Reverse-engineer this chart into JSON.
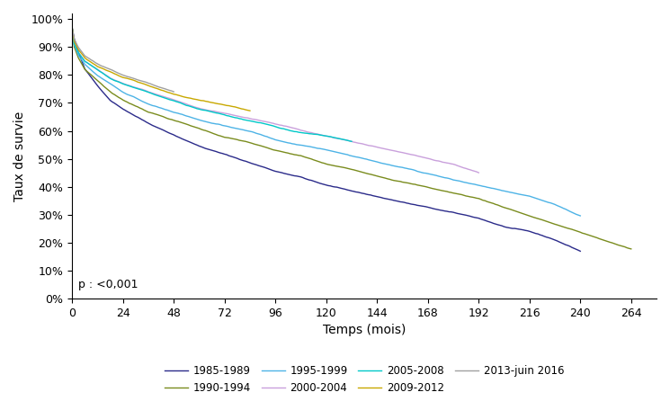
{
  "title": "",
  "xlabel": "Temps (mois)",
  "ylabel": "Taux de survie",
  "xlim": [
    0,
    276
  ],
  "ylim": [
    0,
    1.02
  ],
  "xticks": [
    0,
    24,
    48,
    72,
    96,
    120,
    144,
    168,
    192,
    216,
    240,
    264
  ],
  "yticks": [
    0.0,
    0.1,
    0.2,
    0.3,
    0.4,
    0.5,
    0.6,
    0.7,
    0.8,
    0.9,
    1.0
  ],
  "pvalue_text": "p : <0,001",
  "series": [
    {
      "label": "1985-1989",
      "color": "#2b2b8a",
      "seed": 42,
      "anchor_points": [
        [
          0,
          0.97
        ],
        [
          1,
          0.93
        ],
        [
          3,
          0.88
        ],
        [
          6,
          0.82
        ],
        [
          12,
          0.76
        ],
        [
          18,
          0.71
        ],
        [
          24,
          0.68
        ],
        [
          36,
          0.63
        ],
        [
          48,
          0.59
        ],
        [
          60,
          0.55
        ],
        [
          72,
          0.52
        ],
        [
          84,
          0.49
        ],
        [
          96,
          0.46
        ],
        [
          108,
          0.44
        ],
        [
          120,
          0.41
        ],
        [
          132,
          0.39
        ],
        [
          144,
          0.37
        ],
        [
          156,
          0.35
        ],
        [
          168,
          0.33
        ],
        [
          180,
          0.31
        ],
        [
          192,
          0.29
        ],
        [
          204,
          0.26
        ],
        [
          216,
          0.24
        ],
        [
          228,
          0.21
        ],
        [
          240,
          0.17
        ]
      ]
    },
    {
      "label": "1990-1994",
      "color": "#7a8c1e",
      "seed": 7,
      "anchor_points": [
        [
          0,
          0.97
        ],
        [
          1,
          0.9
        ],
        [
          3,
          0.86
        ],
        [
          6,
          0.82
        ],
        [
          12,
          0.78
        ],
        [
          18,
          0.74
        ],
        [
          24,
          0.71
        ],
        [
          36,
          0.67
        ],
        [
          48,
          0.64
        ],
        [
          60,
          0.61
        ],
        [
          72,
          0.58
        ],
        [
          84,
          0.56
        ],
        [
          96,
          0.53
        ],
        [
          108,
          0.51
        ],
        [
          120,
          0.48
        ],
        [
          132,
          0.46
        ],
        [
          144,
          0.44
        ],
        [
          156,
          0.42
        ],
        [
          168,
          0.4
        ],
        [
          180,
          0.38
        ],
        [
          192,
          0.36
        ],
        [
          204,
          0.33
        ],
        [
          216,
          0.3
        ],
        [
          228,
          0.27
        ],
        [
          240,
          0.24
        ],
        [
          252,
          0.21
        ],
        [
          264,
          0.18
        ]
      ]
    },
    {
      "label": "1995-1999",
      "color": "#4db3e6",
      "seed": 15,
      "anchor_points": [
        [
          0,
          0.97
        ],
        [
          1,
          0.91
        ],
        [
          3,
          0.87
        ],
        [
          6,
          0.84
        ],
        [
          12,
          0.8
        ],
        [
          18,
          0.77
        ],
        [
          24,
          0.74
        ],
        [
          36,
          0.7
        ],
        [
          48,
          0.67
        ],
        [
          60,
          0.64
        ],
        [
          72,
          0.62
        ],
        [
          84,
          0.6
        ],
        [
          96,
          0.57
        ],
        [
          108,
          0.55
        ],
        [
          120,
          0.53
        ],
        [
          132,
          0.51
        ],
        [
          144,
          0.49
        ],
        [
          156,
          0.47
        ],
        [
          168,
          0.45
        ],
        [
          180,
          0.43
        ],
        [
          192,
          0.41
        ],
        [
          204,
          0.39
        ],
        [
          216,
          0.37
        ],
        [
          228,
          0.34
        ],
        [
          240,
          0.3
        ]
      ]
    },
    {
      "label": "2000-2004",
      "color": "#c9a0dc",
      "seed": 23,
      "anchor_points": [
        [
          0,
          0.97
        ],
        [
          1,
          0.91
        ],
        [
          3,
          0.88
        ],
        [
          6,
          0.85
        ],
        [
          12,
          0.82
        ],
        [
          18,
          0.79
        ],
        [
          24,
          0.77
        ],
        [
          36,
          0.74
        ],
        [
          48,
          0.71
        ],
        [
          60,
          0.68
        ],
        [
          72,
          0.66
        ],
        [
          84,
          0.64
        ],
        [
          96,
          0.62
        ],
        [
          108,
          0.6
        ],
        [
          120,
          0.58
        ],
        [
          132,
          0.56
        ],
        [
          144,
          0.54
        ],
        [
          156,
          0.52
        ],
        [
          168,
          0.5
        ],
        [
          180,
          0.48
        ],
        [
          192,
          0.45
        ]
      ]
    },
    {
      "label": "2005-2008",
      "color": "#00c8c8",
      "seed": 31,
      "anchor_points": [
        [
          0,
          0.97
        ],
        [
          1,
          0.91
        ],
        [
          3,
          0.88
        ],
        [
          6,
          0.85
        ],
        [
          12,
          0.82
        ],
        [
          18,
          0.79
        ],
        [
          24,
          0.77
        ],
        [
          36,
          0.74
        ],
        [
          48,
          0.71
        ],
        [
          60,
          0.68
        ],
        [
          72,
          0.66
        ],
        [
          84,
          0.64
        ],
        [
          96,
          0.62
        ],
        [
          108,
          0.6
        ],
        [
          120,
          0.59
        ],
        [
          132,
          0.57
        ]
      ]
    },
    {
      "label": "2009-2012",
      "color": "#c8a800",
      "seed": 39,
      "anchor_points": [
        [
          0,
          0.97
        ],
        [
          1,
          0.92
        ],
        [
          3,
          0.89
        ],
        [
          6,
          0.86
        ],
        [
          12,
          0.83
        ],
        [
          18,
          0.81
        ],
        [
          24,
          0.79
        ],
        [
          36,
          0.76
        ],
        [
          48,
          0.73
        ],
        [
          60,
          0.71
        ],
        [
          72,
          0.69
        ],
        [
          84,
          0.67
        ]
      ]
    },
    {
      "label": "2013-juin 2016",
      "color": "#a0a0a0",
      "seed": 55,
      "anchor_points": [
        [
          0,
          0.97
        ],
        [
          1,
          0.93
        ],
        [
          3,
          0.9
        ],
        [
          6,
          0.87
        ],
        [
          12,
          0.84
        ],
        [
          18,
          0.82
        ],
        [
          24,
          0.8
        ],
        [
          36,
          0.77
        ],
        [
          48,
          0.74
        ]
      ]
    }
  ]
}
